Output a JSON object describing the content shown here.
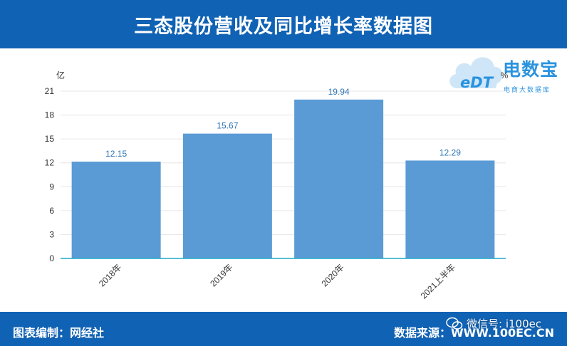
{
  "header": {
    "title": "三态股份营收及同比增长率数据图"
  },
  "logo": {
    "brand_text": "电数宝",
    "sub_text": "电商大数据库",
    "icon_text": "eDT"
  },
  "footer": {
    "compiler": "图表编制：网经社",
    "source": "数据来源：WWW.100EC.CN",
    "wechat": "微信号: i100ec"
  },
  "colors": {
    "brand": "#1062b4",
    "bar": "#5b9bd5",
    "label": "#2e75b6",
    "axis_line": "#1fa9c8"
  },
  "chart_data": {
    "type": "bar",
    "categories": [
      "2018年",
      "2019年",
      "2020年",
      "2021上半年"
    ],
    "values": [
      12.15,
      15.67,
      19.94,
      12.29
    ],
    "value_labels": [
      "12.15",
      "15.67",
      "19.94",
      "12.29"
    ],
    "ylabel": "亿",
    "y2label": "%",
    "ylim": [
      0,
      21
    ],
    "yticks": [
      0,
      3,
      6,
      9,
      12,
      15,
      18,
      21
    ],
    "grid": true
  }
}
